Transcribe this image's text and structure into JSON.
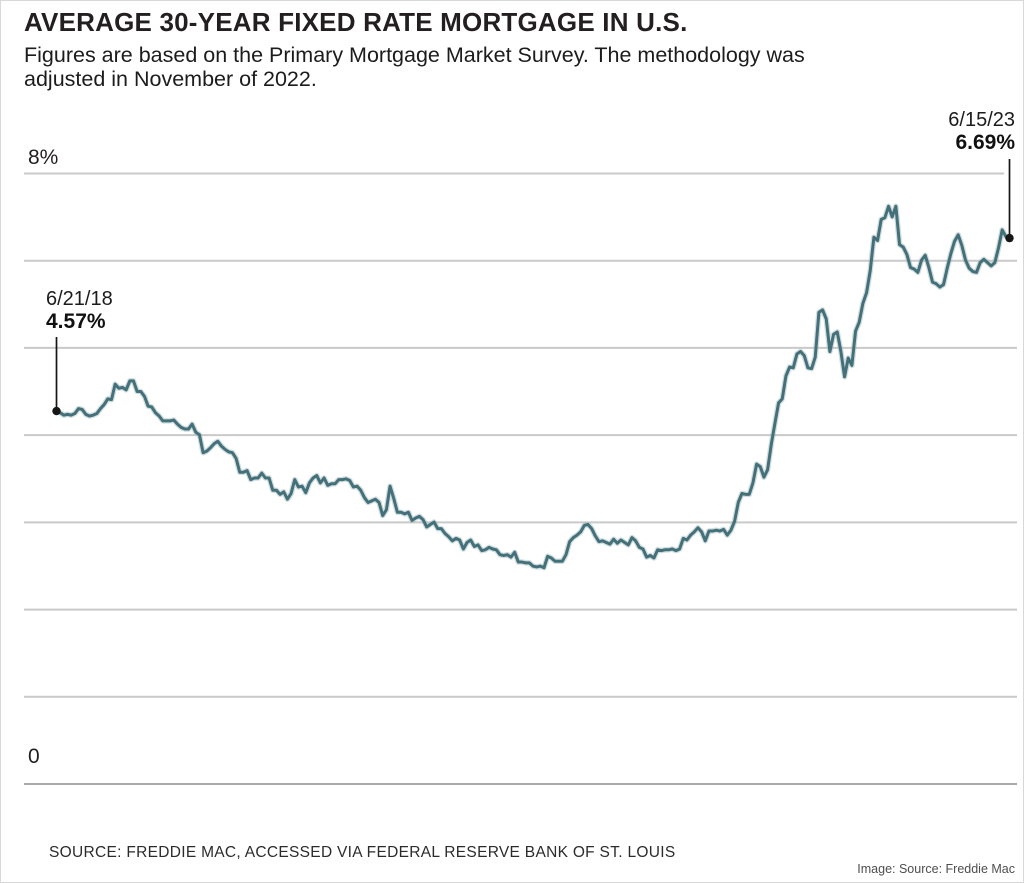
{
  "chart_data": {
    "type": "line",
    "title": "AVERAGE 30-YEAR FIXED RATE MORTGAGE IN U.S.",
    "subtitle_lines": [
      "Figures are based on the Primary Mortgage Market Survey. The methodology was",
      "adjusted in November of 2022."
    ],
    "ylim": [
      0,
      8
    ],
    "y_axis_labels": {
      "top": "8%",
      "bottom": "0"
    },
    "gridlines": 8,
    "legend": "none",
    "annotations": [
      {
        "position": "start",
        "date": "6/21/18",
        "value": "4.57%",
        "numeric_value": 4.57
      },
      {
        "position": "end",
        "date": "6/15/23",
        "value": "6.69%",
        "numeric_value": 6.69
      }
    ],
    "series": [
      {
        "name": "Average 30-year fixed rate mortgage (%)",
        "frequency": "weekly",
        "start_date": "6/21/18",
        "end_date": "6/15/23",
        "values": [
          4.57,
          4.55,
          4.52,
          4.53,
          4.52,
          4.54,
          4.6,
          4.59,
          4.53,
          4.51,
          4.52,
          4.54,
          4.6,
          4.65,
          4.72,
          4.71,
          4.9,
          4.85,
          4.86,
          4.83,
          4.94,
          4.94,
          4.81,
          4.81,
          4.75,
          4.63,
          4.62,
          4.55,
          4.51,
          4.45,
          4.45,
          4.45,
          4.46,
          4.41,
          4.37,
          4.35,
          4.35,
          4.41,
          4.31,
          4.28,
          4.06,
          4.08,
          4.12,
          4.17,
          4.2,
          4.14,
          4.1,
          4.07,
          4.06,
          3.99,
          3.82,
          3.82,
          3.84,
          3.73,
          3.75,
          3.75,
          3.81,
          3.75,
          3.75,
          3.6,
          3.6,
          3.55,
          3.58,
          3.49,
          3.56,
          3.73,
          3.64,
          3.65,
          3.57,
          3.69,
          3.75,
          3.78,
          3.69,
          3.75,
          3.66,
          3.68,
          3.68,
          3.73,
          3.73,
          3.74,
          3.72,
          3.64,
          3.65,
          3.6,
          3.51,
          3.45,
          3.47,
          3.49,
          3.45,
          3.29,
          3.36,
          3.65,
          3.5,
          3.33,
          3.33,
          3.31,
          3.33,
          3.23,
          3.26,
          3.28,
          3.24,
          3.15,
          3.18,
          3.21,
          3.13,
          3.13,
          3.07,
          3.03,
          2.98,
          3.01,
          2.99,
          2.88,
          2.96,
          2.99,
          2.91,
          2.93,
          2.86,
          2.87,
          2.9,
          2.88,
          2.87,
          2.81,
          2.8,
          2.81,
          2.78,
          2.84,
          2.72,
          2.72,
          2.71,
          2.71,
          2.67,
          2.66,
          2.67,
          2.65,
          2.79,
          2.77,
          2.73,
          2.73,
          2.73,
          2.81,
          2.97,
          3.02,
          3.05,
          3.09,
          3.17,
          3.18,
          3.13,
          3.04,
          2.97,
          2.98,
          2.96,
          2.94,
          3.0,
          2.95,
          2.99,
          2.96,
          2.93,
          3.02,
          2.98,
          2.9,
          2.88,
          2.78,
          2.8,
          2.77,
          2.87,
          2.86,
          2.87,
          2.87,
          2.88,
          2.86,
          2.88,
          3.01,
          2.99,
          3.05,
          3.09,
          3.14,
          3.09,
          2.98,
          3.1,
          3.1,
          3.11,
          3.1,
          3.12,
          3.05,
          3.11,
          3.22,
          3.45,
          3.56,
          3.55,
          3.55,
          3.69,
          3.92,
          3.89,
          3.76,
          3.85,
          4.16,
          4.42,
          4.67,
          4.72,
          5.0,
          5.11,
          5.1,
          5.27,
          5.3,
          5.25,
          5.1,
          5.09,
          5.23,
          5.78,
          5.81,
          5.7,
          5.3,
          5.51,
          5.54,
          5.3,
          4.99,
          5.22,
          5.13,
          5.55,
          5.66,
          5.89,
          6.02,
          6.29,
          6.7,
          6.66,
          6.92,
          6.94,
          7.08,
          6.95,
          7.08,
          6.61,
          6.58,
          6.49,
          6.33,
          6.31,
          6.27,
          6.42,
          6.48,
          6.33,
          6.15,
          6.13,
          6.09,
          6.12,
          6.32,
          6.5,
          6.65,
          6.73,
          6.6,
          6.42,
          6.32,
          6.28,
          6.27,
          6.39,
          6.43,
          6.39,
          6.35,
          6.39,
          6.57,
          6.79,
          6.71,
          6.69
        ]
      }
    ]
  },
  "footer": {
    "source": "SOURCE: FREDDIE MAC, ACCESSED VIA FEDERAL RESERVE BANK OF ST. LOUIS",
    "credit": "Image: Source: Freddie Mac"
  },
  "colors": {
    "line": "#44707a",
    "line_halo": "#9ab3b9",
    "grid": "#c9c9c9",
    "baseline": "#a9a9a9",
    "ink": "#161616"
  }
}
